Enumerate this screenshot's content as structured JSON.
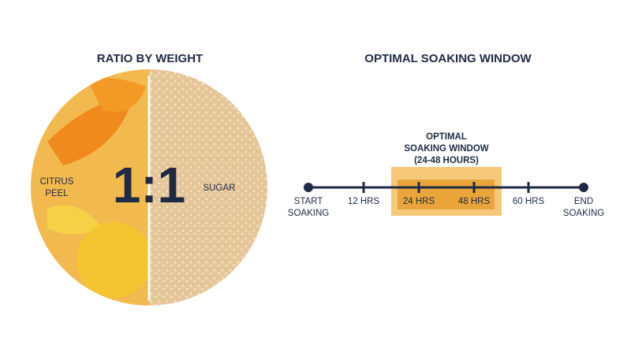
{
  "ratio_panel": {
    "title": "RATIO BY WEIGHT",
    "left_label": [
      "CITRUS",
      "PEEL"
    ],
    "ratio": "1:1",
    "right_label": "SUGAR"
  },
  "timeline_panel": {
    "title": "OPTIMAL SOAKING WINDOW",
    "window_label": [
      "OPTIMAL",
      "SOAKING WINDOW",
      "(24-48 HOURS)"
    ],
    "start_label": [
      "START",
      "SOAKING"
    ],
    "ticks": [
      "12 HRS",
      "24 HRS",
      "48 HRS",
      "60 HRS"
    ],
    "end_label": [
      "END",
      "SOAKING"
    ]
  }
}
